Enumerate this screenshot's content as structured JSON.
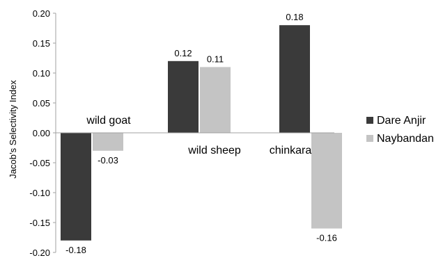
{
  "chart_data": {
    "type": "bar",
    "title": "",
    "xlabel": "",
    "ylabel": "Jacob’s Selectivity Index",
    "ylim": [
      -0.2,
      0.2
    ],
    "yticks": [
      "0.20",
      "0.15",
      "0.10",
      "0.05",
      "0.00",
      "-0.05",
      "-0.10",
      "-0.15",
      "-0.20"
    ],
    "categories": [
      "wild goat",
      "wild sheep",
      "chinkara"
    ],
    "series": [
      {
        "name": "Dare Anjir",
        "color": "#3a3a3a",
        "values": [
          -0.18,
          0.12,
          0.18
        ],
        "labels": [
          "-0.18",
          "0.12",
          "0.18"
        ]
      },
      {
        "name": "Naybandan",
        "color": "#c4c4c4",
        "values": [
          -0.03,
          0.11,
          -0.16
        ],
        "labels": [
          "-0.03",
          "0.11",
          "-0.16"
        ]
      }
    ],
    "legend": "right",
    "grid": false
  }
}
